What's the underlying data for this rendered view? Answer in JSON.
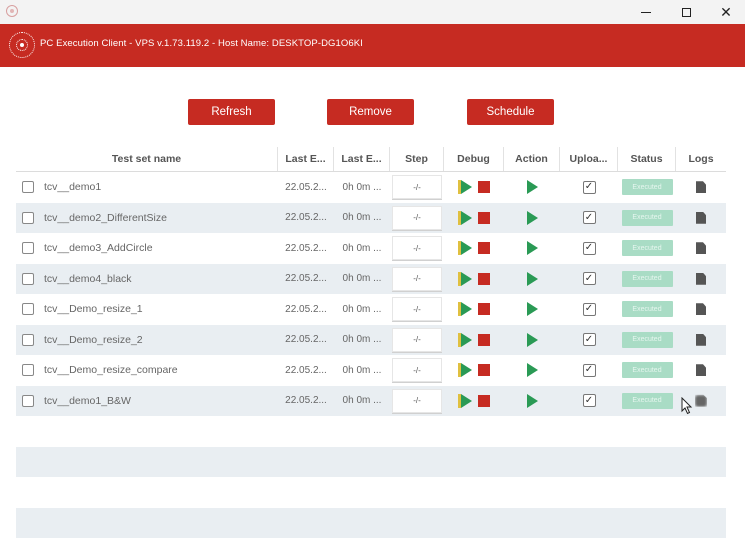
{
  "window": {
    "minimize_glyph": "—",
    "maximize_glyph": "□",
    "close_glyph": "✕"
  },
  "header": {
    "title": "PC Execution Client - VPS v.1.73.119.2 - Host Name: DESKTOP-DG1O6KI"
  },
  "toolbar": {
    "refresh_label": "Refresh",
    "remove_label": "Remove",
    "schedule_label": "Schedule"
  },
  "table": {
    "columns": [
      "Test set name",
      "Last E...",
      "Last E...",
      "Step",
      "Debug",
      "Action",
      "Uploa...",
      "Status",
      "Logs"
    ],
    "rows": [
      {
        "name": "tcv__demo1",
        "last_exec_date": "22.05.2...",
        "last_exec_duration": "0h 0m ...",
        "step": "-/-",
        "upload": "✓",
        "status": "Executed"
      },
      {
        "name": "tcv__demo2_DifferentSize",
        "last_exec_date": "22.05.2...",
        "last_exec_duration": "0h 0m ...",
        "step": "-/-",
        "upload": "✓",
        "status": "Executed"
      },
      {
        "name": "tcv__demo3_AddCircle",
        "last_exec_date": "22.05.2...",
        "last_exec_duration": "0h 0m ...",
        "step": "-/-",
        "upload": "✓",
        "status": "Executed"
      },
      {
        "name": "tcv__demo4_black",
        "last_exec_date": "22.05.2...",
        "last_exec_duration": "0h 0m ...",
        "step": "-/-",
        "upload": "✓",
        "status": "Executed"
      },
      {
        "name": "tcv__Demo_resize_1",
        "last_exec_date": "22.05.2...",
        "last_exec_duration": "0h 0m ...",
        "step": "-/-",
        "upload": "✓",
        "status": "Executed"
      },
      {
        "name": "tcv__Demo_resize_2",
        "last_exec_date": "22.05.2...",
        "last_exec_duration": "0h 0m ...",
        "step": "-/-",
        "upload": "✓",
        "status": "Executed"
      },
      {
        "name": "tcv__Demo_resize_compare",
        "last_exec_date": "22.05.2...",
        "last_exec_duration": "0h 0m ...",
        "step": "-/-",
        "upload": "✓",
        "status": "Executed"
      },
      {
        "name": "tcv__demo1_B&W",
        "last_exec_date": "22.05.2...",
        "last_exec_duration": "0h 0m ...",
        "step": "-/-",
        "upload": "✓",
        "status": "Executed"
      }
    ]
  },
  "colors": {
    "brand": "#c62b22",
    "play": "#2a9a55",
    "status_badge": "#a9dcc5",
    "alt_row": "#e9eef2"
  },
  "icons": {
    "app": "app-icon",
    "logo": "logo-icon",
    "debug": "debug-play-icon",
    "stop": "stop-icon",
    "action": "play-icon",
    "logs": "document-icon"
  }
}
